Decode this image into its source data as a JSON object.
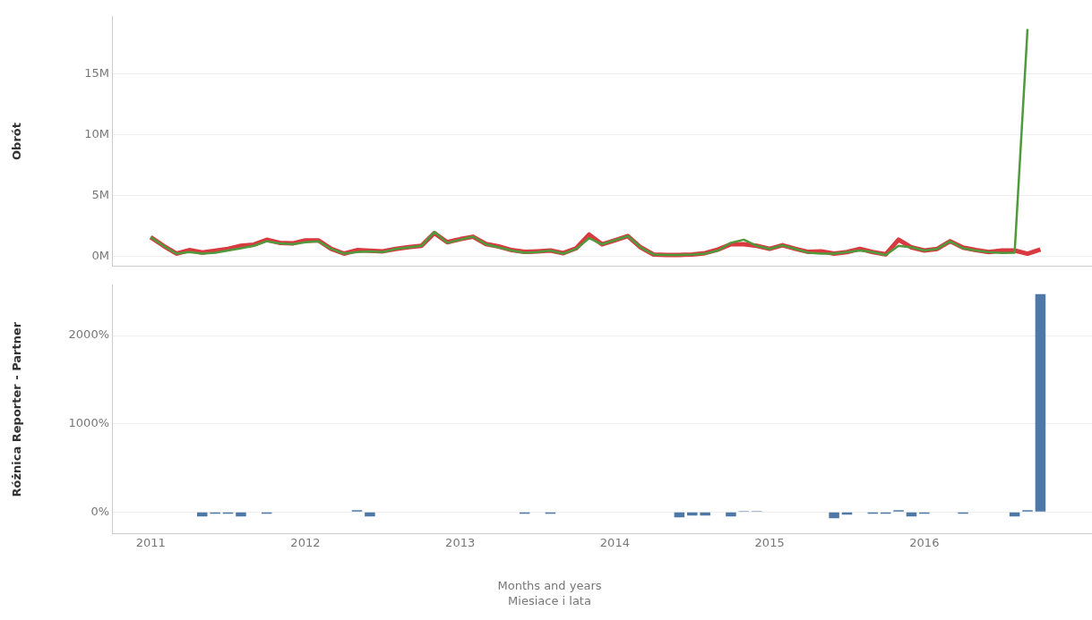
{
  "chart_data": [
    {
      "type": "line",
      "ylabel": "Obrót",
      "tick_labels": "y",
      "grid": "y",
      "marker": "none",
      "x": [
        "2011-01",
        "2011-02",
        "2011-03",
        "2011-04",
        "2011-05",
        "2011-06",
        "2011-07",
        "2011-08",
        "2011-09",
        "2011-10",
        "2011-11",
        "2011-12",
        "2012-01",
        "2012-02",
        "2012-03",
        "2012-04",
        "2012-05",
        "2012-06",
        "2012-07",
        "2012-08",
        "2012-09",
        "2012-10",
        "2012-11",
        "2012-12",
        "2013-01",
        "2013-02",
        "2013-03",
        "2013-04",
        "2013-05",
        "2013-06",
        "2013-07",
        "2013-08",
        "2013-09",
        "2013-10",
        "2013-11",
        "2013-12",
        "2014-01",
        "2014-02",
        "2014-03",
        "2014-04",
        "2014-05",
        "2014-06",
        "2014-07",
        "2014-08",
        "2014-09",
        "2014-10",
        "2014-11",
        "2014-12",
        "2015-01",
        "2015-02",
        "2015-03",
        "2015-04",
        "2015-05",
        "2015-06",
        "2015-07",
        "2015-08",
        "2015-09",
        "2015-10",
        "2015-11",
        "2015-12",
        "2016-01",
        "2016-02",
        "2016-03",
        "2016-04",
        "2016-05",
        "2016-06",
        "2016-07",
        "2016-08",
        "2016-09",
        "2016-10"
      ],
      "xlim": [
        "2010-10",
        "2017-02"
      ],
      "ylim": [
        -0.8,
        19.7
      ],
      "yticks": [
        {
          "value": 0,
          "label": "0M"
        },
        {
          "value": 5,
          "label": "5M"
        },
        {
          "value": 10,
          "label": "10M"
        },
        {
          "value": 15,
          "label": "15M"
        }
      ],
      "series": [
        {
          "color": "#d93a3f",
          "values": [
            1.56,
            0.85,
            0.21,
            0.5,
            0.3,
            0.45,
            0.6,
            0.85,
            0.95,
            1.35,
            1.1,
            1.05,
            1.3,
            1.3,
            0.6,
            0.21,
            0.5,
            0.45,
            0.4,
            0.6,
            0.75,
            0.85,
            1.9,
            1.15,
            1.4,
            1.6,
            1.0,
            0.8,
            0.5,
            0.35,
            0.4,
            0.47,
            0.25,
            0.65,
            1.78,
            0.98,
            1.31,
            1.66,
            0.72,
            0.14,
            0.1,
            0.1,
            0.14,
            0.25,
            0.55,
            0.98,
            0.98,
            0.85,
            0.6,
            0.9,
            0.6,
            0.35,
            0.4,
            0.21,
            0.34,
            0.6,
            0.34,
            0.15,
            1.36,
            0.72,
            0.47,
            0.6,
            1.23,
            0.7,
            0.5,
            0.34,
            0.47,
            0.47,
            0.2,
            0.55
          ]
        },
        {
          "color": "#4f9a3c",
          "values": [
            1.56,
            0.85,
            0.21,
            0.34,
            0.21,
            0.29,
            0.47,
            0.65,
            0.85,
            1.23,
            1.05,
            0.98,
            1.15,
            1.23,
            0.6,
            0.21,
            0.34,
            0.39,
            0.34,
            0.6,
            0.72,
            0.85,
            1.99,
            1.1,
            1.36,
            1.61,
            0.98,
            0.72,
            0.47,
            0.29,
            0.34,
            0.47,
            0.21,
            0.6,
            1.48,
            0.98,
            1.31,
            1.66,
            0.72,
            0.14,
            0.1,
            0.1,
            0.14,
            0.21,
            0.47,
            1.1,
            1.36,
            0.85,
            0.6,
            0.9,
            0.6,
            0.29,
            0.21,
            0.21,
            0.34,
            0.47,
            0.34,
            0.1,
            0.85,
            0.72,
            0.47,
            0.6,
            1.23,
            0.65,
            0.47,
            0.34,
            0.26,
            0.29,
            18.7,
            null
          ]
        }
      ]
    },
    {
      "type": "bar",
      "ylabel": "Różnica Reporter - Partner",
      "grid": "y",
      "x": [
        "2011-01",
        "2011-02",
        "2011-03",
        "2011-04",
        "2011-05",
        "2011-06",
        "2011-07",
        "2011-08",
        "2011-09",
        "2011-10",
        "2011-11",
        "2011-12",
        "2012-01",
        "2012-02",
        "2012-03",
        "2012-04",
        "2012-05",
        "2012-06",
        "2012-07",
        "2012-08",
        "2012-09",
        "2012-10",
        "2012-11",
        "2012-12",
        "2013-01",
        "2013-02",
        "2013-03",
        "2013-04",
        "2013-05",
        "2013-06",
        "2013-07",
        "2013-08",
        "2013-09",
        "2013-10",
        "2013-11",
        "2013-12",
        "2014-01",
        "2014-02",
        "2014-03",
        "2014-04",
        "2014-05",
        "2014-06",
        "2014-07",
        "2014-08",
        "2014-09",
        "2014-10",
        "2014-11",
        "2014-12",
        "2015-01",
        "2015-02",
        "2015-03",
        "2015-04",
        "2015-05",
        "2015-06",
        "2015-07",
        "2015-08",
        "2015-09",
        "2015-10",
        "2015-11",
        "2015-12",
        "2016-01",
        "2016-02",
        "2016-03",
        "2016-04",
        "2016-05",
        "2016-06",
        "2016-07",
        "2016-08",
        "2016-09",
        "2016-10"
      ],
      "xlim": [
        "2010-10",
        "2017-02"
      ],
      "xticks": [
        {
          "value": "2011",
          "label": "2011"
        },
        {
          "value": "2012",
          "label": "2012"
        },
        {
          "value": "2013",
          "label": "2013"
        },
        {
          "value": "2014",
          "label": "2014"
        },
        {
          "value": "2015",
          "label": "2015"
        },
        {
          "value": "2016",
          "label": "2016"
        }
      ],
      "ylim": [
        -245,
        2570
      ],
      "yticks": [
        {
          "value": 0,
          "label": "0%"
        },
        {
          "value": 1000,
          "label": "1000%"
        },
        {
          "value": 2000,
          "label": "2000%"
        }
      ],
      "series": [
        {
          "color": "#4e79a7",
          "values": [
            0,
            0,
            0,
            0,
            -50,
            -20,
            -20,
            -50,
            0,
            -20,
            0,
            0,
            0,
            0,
            0,
            0,
            20,
            -50,
            0,
            0,
            0,
            0,
            0,
            0,
            0,
            0,
            0,
            0,
            0,
            -20,
            0,
            -20,
            0,
            0,
            0,
            0,
            0,
            0,
            0,
            0,
            0,
            -60,
            -40,
            -40,
            0,
            -50,
            10,
            10,
            0,
            0,
            0,
            0,
            0,
            -70,
            -30,
            0,
            -20,
            -20,
            20,
            -50,
            -20,
            0,
            0,
            -20,
            0,
            0,
            0,
            -50,
            20,
            2470
          ]
        }
      ],
      "annotations": [
        "Months and years",
        "Miesiace i lata"
      ]
    }
  ]
}
